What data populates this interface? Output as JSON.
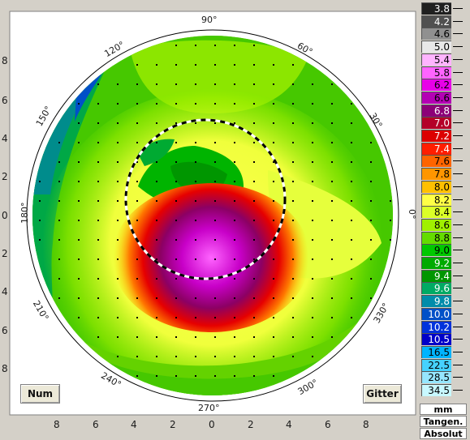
{
  "map": {
    "y_axis_labels": [
      "8",
      "6",
      "4",
      "2",
      "0",
      "2",
      "4",
      "6",
      "8"
    ],
    "x_axis_labels": [
      "8",
      "6",
      "4",
      "2",
      "0",
      "2",
      "4",
      "6",
      "8"
    ],
    "angle_labels": [
      "90°",
      "60°",
      "30°",
      "0°",
      "330°",
      "300°",
      "270°",
      "240°",
      "210°",
      "180°",
      "150°",
      "120°"
    ],
    "num_button": "Num",
    "gitter_button": "Gitter"
  },
  "scale": {
    "values": [
      "3.8",
      "4.2",
      "4.6",
      "5.0",
      "5.4",
      "5.8",
      "6.2",
      "6.6",
      "6.8",
      "7.0",
      "7.2",
      "7.4",
      "7.6",
      "7.8",
      "8.0",
      "8.2",
      "8.4",
      "8.6",
      "8.8",
      "9.0",
      "9.2",
      "9.4",
      "9.6",
      "9.8",
      "10.0",
      "10.2",
      "10.5",
      "16.5",
      "22.5",
      "28.5",
      "34.5"
    ],
    "colors": [
      "#202020",
      "#505050",
      "#909090",
      "#e8e8e8",
      "#ffb4ff",
      "#ff64ff",
      "#e800e8",
      "#b400b4",
      "#8c0078",
      "#b40028",
      "#dc0000",
      "#ff1e00",
      "#ff6400",
      "#ff9600",
      "#ffc000",
      "#ffff46",
      "#dcff28",
      "#a0f000",
      "#64dc00",
      "#00c800",
      "#00aa00",
      "#009600",
      "#00aa64",
      "#008caa",
      "#0050c8",
      "#0032dc",
      "#0000c8",
      "#00b4ff",
      "#46d2ff",
      "#96e6ff",
      "#c8f8ff"
    ],
    "text_light": [
      "3.8",
      "4.2",
      "6.8",
      "7.0",
      "7.2",
      "7.4",
      "9.2",
      "9.4",
      "9.6",
      "9.8",
      "10.0",
      "10.2",
      "10.5"
    ],
    "footer": [
      "mm",
      "Tangen.",
      "Absolut"
    ]
  }
}
